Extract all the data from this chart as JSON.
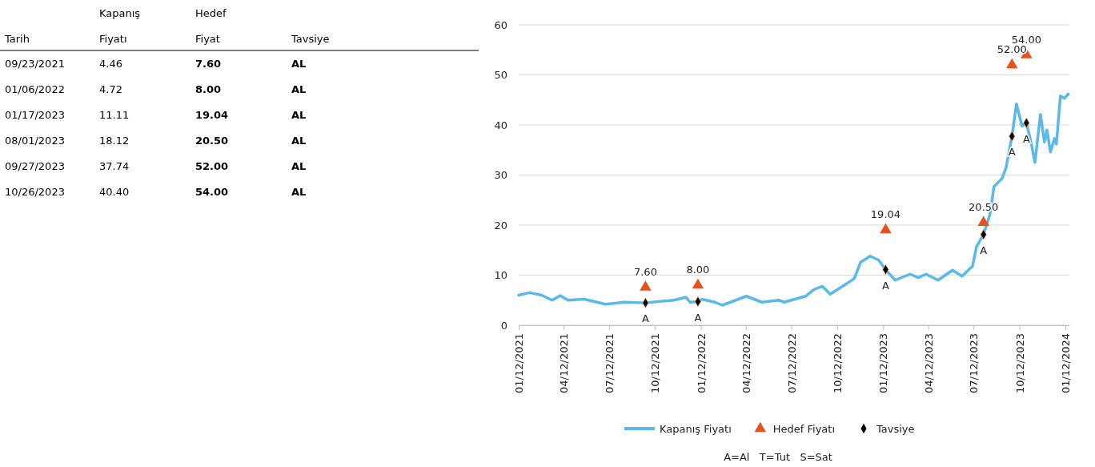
{
  "chart_data": [
    {
      "type": "other",
      "categories": [
        "Tarih",
        "Kapanış Fiyatı",
        "Hedef Fiyat",
        "Tavsiye"
      ],
      "annotations": [
        "09/23/2021",
        "4.46",
        "7.60",
        "AL",
        "01/06/2022",
        "4.72",
        "8.00",
        "AL",
        "01/17/2023",
        "11.11",
        "19.04",
        "AL",
        "08/01/2023",
        "18.12",
        "20.50",
        "AL",
        "09/27/2023",
        "37.74",
        "52.00",
        "AL",
        "10/26/2023",
        "40.40",
        "54.00",
        "AL"
      ]
    },
    {
      "type": "line",
      "xlim": [
        "2021-01-12",
        "2024-01-20"
      ],
      "ylim": [
        0,
        60
      ],
      "yticks": [
        0,
        10,
        20,
        30,
        40,
        50,
        60
      ],
      "xticks": [
        {
          "value": "2021-01-12",
          "label": "01/12/2021"
        },
        {
          "value": "2021-04-12",
          "label": "04/12/2021"
        },
        {
          "value": "2021-07-12",
          "label": "07/12/2021"
        },
        {
          "value": "2021-10-12",
          "label": "10/12/2021"
        },
        {
          "value": "2022-01-12",
          "label": "01/12/2022"
        },
        {
          "value": "2022-04-12",
          "label": "04/12/2022"
        },
        {
          "value": "2022-07-12",
          "label": "07/12/2022"
        },
        {
          "value": "2022-10-12",
          "label": "10/12/2022"
        },
        {
          "value": "2023-01-12",
          "label": "01/12/2023"
        },
        {
          "value": "2023-04-12",
          "label": "04/12/2023"
        },
        {
          "value": "2023-07-12",
          "label": "07/12/2023"
        },
        {
          "value": "2023-10-12",
          "label": "10/12/2023"
        },
        {
          "value": "2024-01-12",
          "label": "01/12/2024"
        }
      ],
      "grid": "y",
      "legend": "bottom",
      "annotations": [
        "A=Al   T=Tut   S=Sat"
      ],
      "series": [
        {
          "type": "line",
          "name": "Kapanış Fiyatı",
          "color": "#5ab9ea",
          "x": [
            "2021-01-12",
            "2021-02-03",
            "2021-02-27",
            "2021-03-20",
            "2021-04-05",
            "2021-04-21",
            "2021-05-23",
            "2021-07-05",
            "2021-08-12",
            "2021-09-23",
            "2021-10-26",
            "2021-11-19",
            "2021-12-13",
            "2021-12-21",
            "2022-01-06",
            "2022-01-14",
            "2022-02-09",
            "2022-02-24",
            "2022-03-23",
            "2022-04-13",
            "2022-05-14",
            "2022-06-17",
            "2022-06-28",
            "2022-07-19",
            "2022-08-10",
            "2022-08-26",
            "2022-09-12",
            "2022-09-28",
            "2022-10-23",
            "2022-11-15",
            "2022-11-28",
            "2022-12-17",
            "2023-01-03",
            "2023-01-17",
            "2023-02-05",
            "2023-03-07",
            "2023-03-23",
            "2023-04-08",
            "2023-05-02",
            "2023-05-31",
            "2023-06-19",
            "2023-07-10",
            "2023-07-18",
            "2023-08-01",
            "2023-08-14",
            "2023-08-22",
            "2023-09-07",
            "2023-09-15",
            "2023-09-27",
            "2023-10-06",
            "2023-10-17",
            "2023-10-26",
            "2023-11-04",
            "2023-11-12",
            "2023-11-23",
            "2023-12-01",
            "2023-12-06",
            "2023-12-13",
            "2023-12-21",
            "2023-12-25",
            "2024-01-02",
            "2024-01-10",
            "2024-01-18"
          ],
          "values": [
            6.0,
            6.5,
            6.0,
            5.0,
            5.9,
            5.0,
            5.2,
            4.2,
            4.6,
            4.46,
            4.8,
            5.0,
            5.6,
            4.6,
            4.72,
            5.2,
            4.6,
            4.0,
            5.0,
            5.8,
            4.6,
            5.0,
            4.6,
            5.2,
            5.8,
            7.1,
            7.8,
            6.2,
            7.8,
            9.3,
            12.6,
            13.8,
            13.0,
            11.11,
            9.0,
            10.2,
            9.5,
            10.2,
            9.0,
            11.0,
            9.8,
            11.8,
            15.7,
            18.12,
            22.2,
            27.7,
            29.3,
            31.4,
            37.74,
            44.2,
            39.8,
            40.4,
            36.6,
            32.5,
            42.1,
            36.6,
            39.0,
            34.6,
            37.3,
            36.2,
            45.8,
            45.3,
            46.2
          ]
        },
        {
          "type": "scatter",
          "name": "Hedef Fiyatı",
          "color": "#e8501c",
          "marker": "triangle",
          "x": [
            "2021-09-23",
            "2022-01-06",
            "2023-01-17",
            "2023-08-01",
            "2023-09-27",
            "2023-10-26"
          ],
          "values": [
            7.6,
            8.0,
            19.04,
            20.5,
            52.0,
            54.0
          ],
          "value_labels": [
            "7.60",
            "8.00",
            "19.04",
            "20.50",
            "52.00",
            "54.00"
          ]
        },
        {
          "type": "scatter",
          "name": "Tavsiye",
          "color": "#000000",
          "marker": "diamond",
          "x": [
            "2021-09-23",
            "2022-01-06",
            "2023-01-17",
            "2023-08-01",
            "2023-09-27",
            "2023-10-26"
          ],
          "values": [
            4.46,
            4.72,
            11.11,
            18.12,
            37.74,
            40.4
          ],
          "value_labels": [
            "A",
            "A",
            "A",
            "A",
            "A",
            "A"
          ]
        }
      ]
    }
  ]
}
